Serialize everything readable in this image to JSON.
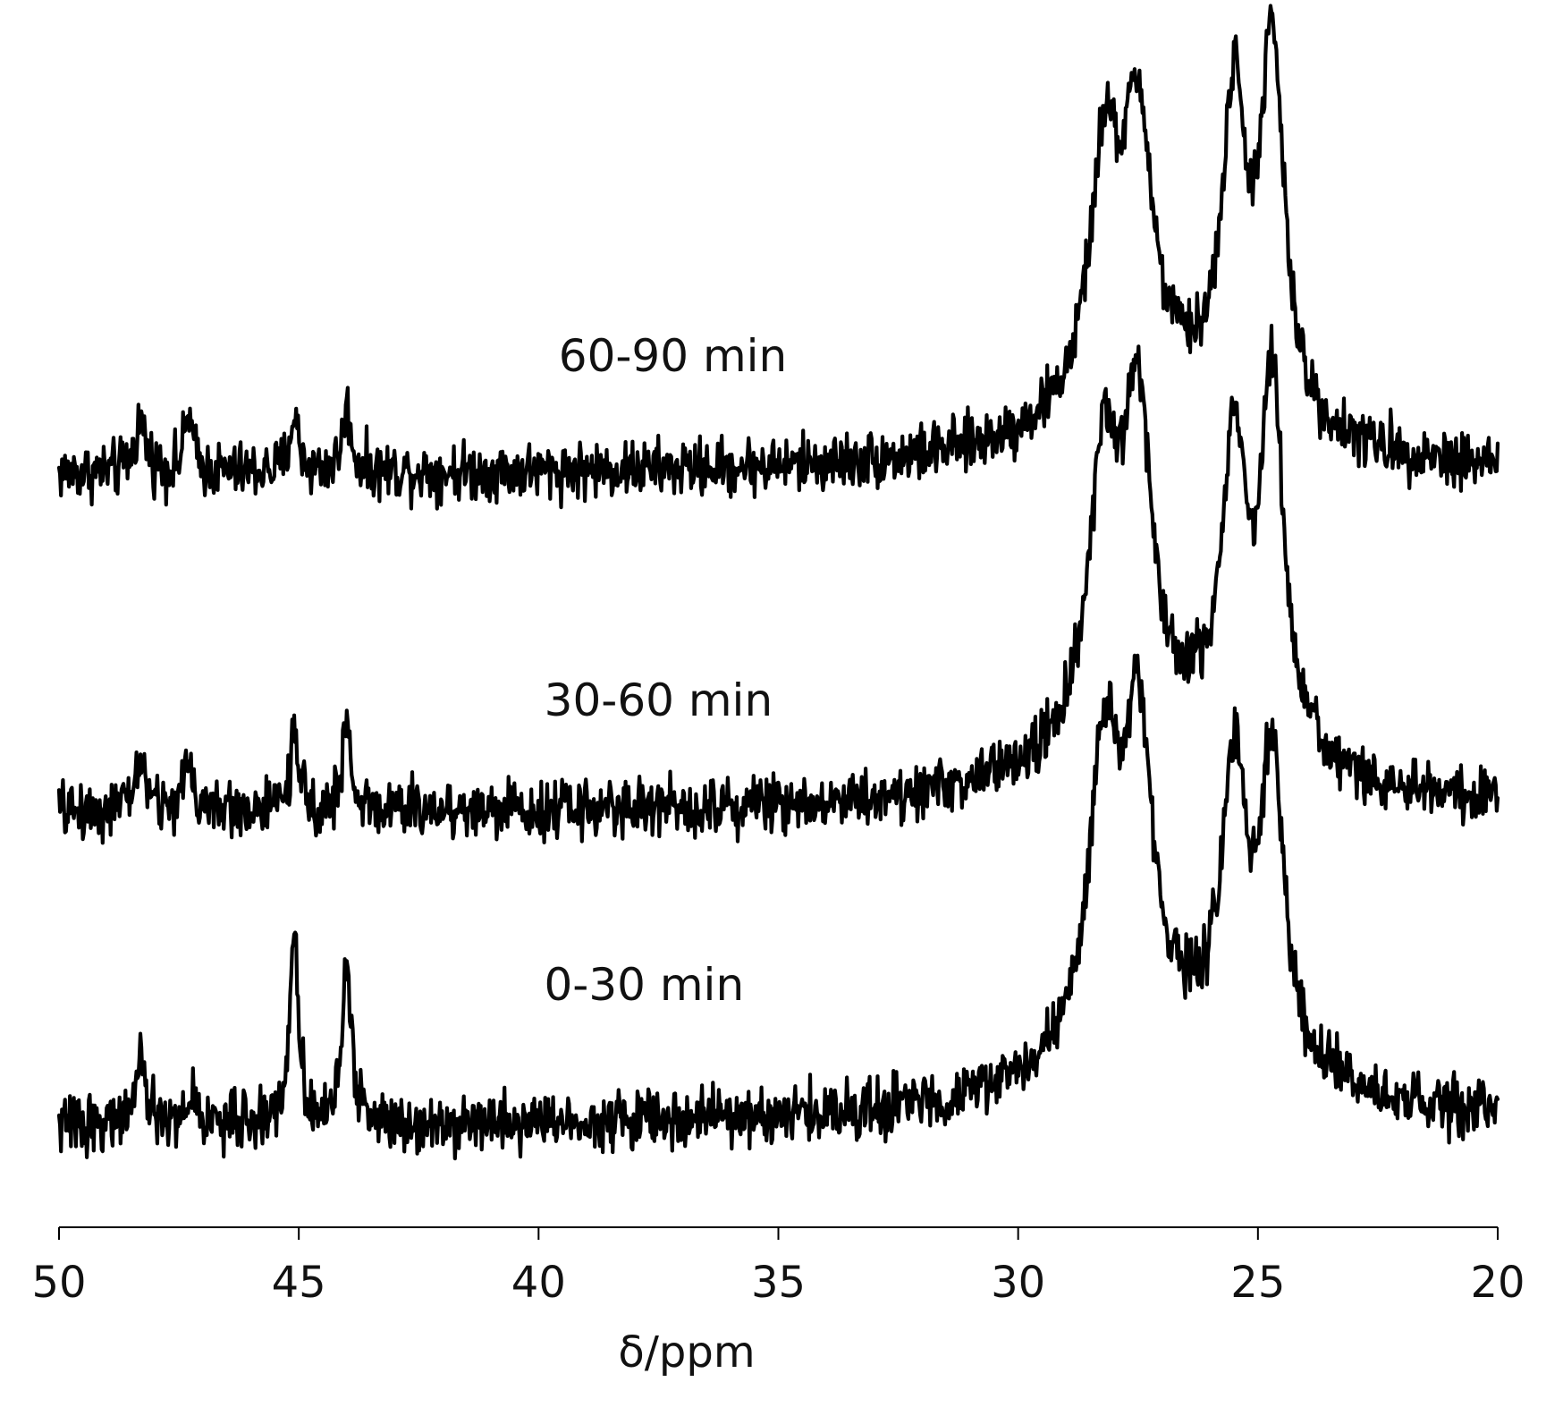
{
  "chart_data": {
    "type": "line",
    "xlabel": "δ/ppm",
    "x_range": [
      50,
      20
    ],
    "x_reversed": true,
    "x_ticks": [
      50,
      45,
      40,
      35,
      30,
      25,
      20
    ],
    "x_tick_labels": [
      "50",
      "45",
      "40",
      "35",
      "30",
      "25",
      "20"
    ],
    "y_axis_shown": false,
    "grid": false,
    "legend": "none (series labelled inline above each spectrum)",
    "line_color": "#000000",
    "series": [
      {
        "name": "60-90 min",
        "baseline": 0,
        "noise": 0.09,
        "peaks_ppm": [
          {
            "center": 48.3,
            "height": 0.33,
            "width": 0.14
          },
          {
            "center": 47.3,
            "height": 0.38,
            "width": 0.1
          },
          {
            "center": 45.1,
            "height": 0.36,
            "width": 0.11
          },
          {
            "center": 44.0,
            "height": 0.4,
            "width": 0.11
          },
          {
            "center": 28.2,
            "height": 1.55,
            "width": 0.38
          },
          {
            "center": 27.5,
            "height": 1.67,
            "width": 0.35
          },
          {
            "center": 25.5,
            "height": 1.9,
            "width": 0.3
          },
          {
            "center": 24.7,
            "height": 2.35,
            "width": 0.3
          }
        ],
        "broad_hump": {
          "center": 27.0,
          "height": 0.48,
          "width": 2.6
        }
      },
      {
        "name": "30-60 min",
        "baseline": 0,
        "noise": 0.09,
        "peaks_ppm": [
          {
            "center": 48.3,
            "height": 0.32,
            "width": 0.14
          },
          {
            "center": 47.3,
            "height": 0.36,
            "width": 0.1
          },
          {
            "center": 45.1,
            "height": 0.44,
            "width": 0.11
          },
          {
            "center": 44.0,
            "height": 0.52,
            "width": 0.11
          },
          {
            "center": 28.2,
            "height": 1.75,
            "width": 0.38
          },
          {
            "center": 27.5,
            "height": 1.9,
            "width": 0.35
          },
          {
            "center": 25.5,
            "height": 1.85,
            "width": 0.3
          },
          {
            "center": 24.7,
            "height": 2.35,
            "width": 0.3
          }
        ],
        "broad_hump": {
          "center": 27.0,
          "height": 0.5,
          "width": 2.6
        }
      },
      {
        "name": "0-30 min",
        "baseline": 0,
        "noise": 0.09,
        "peaks_ppm": [
          {
            "center": 48.3,
            "height": 0.35,
            "width": 0.14
          },
          {
            "center": 47.2,
            "height": 0.18,
            "width": 0.1
          },
          {
            "center": 45.1,
            "height": 1.2,
            "width": 0.11
          },
          {
            "center": 44.0,
            "height": 1.05,
            "width": 0.11
          },
          {
            "center": 28.2,
            "height": 1.8,
            "width": 0.38
          },
          {
            "center": 27.5,
            "height": 1.9,
            "width": 0.35
          },
          {
            "center": 25.5,
            "height": 1.75,
            "width": 0.3
          },
          {
            "center": 24.7,
            "height": 1.95,
            "width": 0.3
          }
        ],
        "broad_hump": {
          "center": 27.0,
          "height": 0.55,
          "width": 2.6
        }
      }
    ]
  }
}
